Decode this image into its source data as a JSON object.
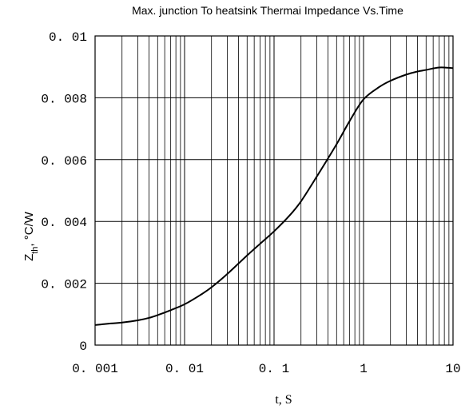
{
  "chart_data": {
    "type": "line",
    "title": "Max. junction To heatsink Thermai Impedance Vs.Time",
    "xlabel": "t, S",
    "ylabel_main": "Z",
    "ylabel_sub": "th",
    "ylabel_unit": ", °C/W",
    "x_scale": "log",
    "xlim": [
      0.001,
      10
    ],
    "ylim": [
      0,
      0.01
    ],
    "grid": true,
    "x_ticks": [
      0.001,
      0.01,
      0.1,
      1,
      10
    ],
    "x_tick_labels": [
      "0. 001",
      "0. 01",
      "0. 1",
      "1",
      "10"
    ],
    "y_ticks": [
      0,
      0.002,
      0.004,
      0.006,
      0.008,
      0.01
    ],
    "y_tick_labels": [
      "0",
      "0. 002",
      "0. 004",
      "0. 006",
      "0. 008",
      "0. 01"
    ],
    "series": [
      {
        "x": [
          0.001,
          0.0015,
          0.002,
          0.003,
          0.004,
          0.005,
          0.007,
          0.01,
          0.015,
          0.02,
          0.03,
          0.05,
          0.07,
          0.1,
          0.15,
          0.2,
          0.3,
          0.5,
          0.7,
          1,
          1.5,
          2,
          3,
          4,
          5,
          6,
          7,
          8,
          10
        ],
        "y": [
          0.00065,
          0.0007,
          0.00073,
          0.0008,
          0.00088,
          0.00097,
          0.00113,
          0.00132,
          0.00162,
          0.00187,
          0.0023,
          0.0029,
          0.00328,
          0.00368,
          0.0042,
          0.00465,
          0.00545,
          0.0065,
          0.00725,
          0.00795,
          0.00835,
          0.00855,
          0.00875,
          0.00885,
          0.0089,
          0.00895,
          0.00898,
          0.00898,
          0.00896
        ]
      }
    ]
  }
}
